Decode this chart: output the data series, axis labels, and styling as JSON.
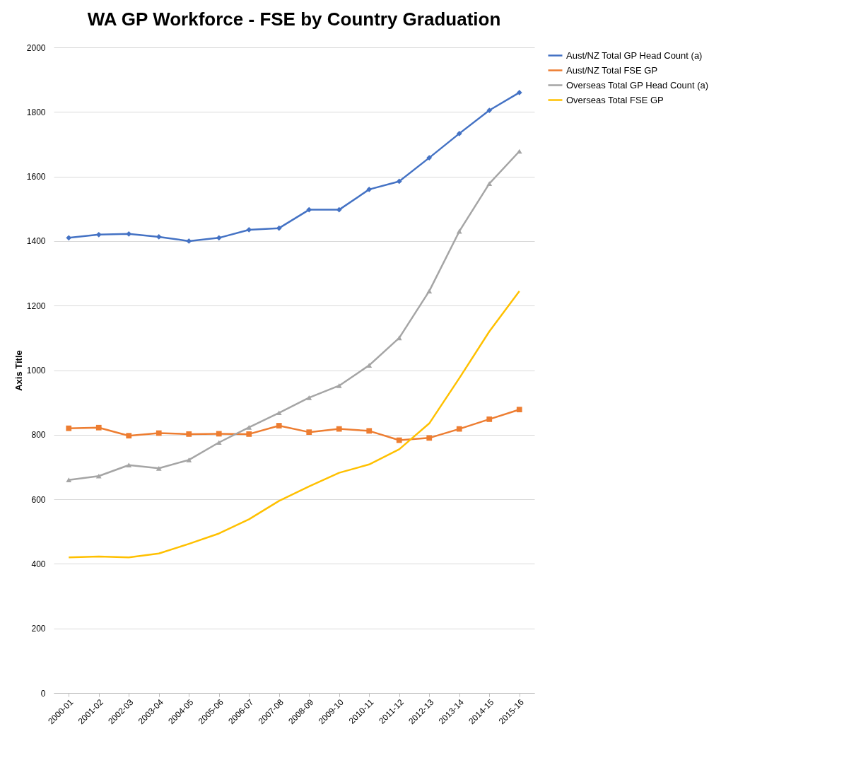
{
  "chart_data": {
    "type": "line",
    "title": "WA GP Workforce - FSE by Country Graduation",
    "ylabel": "Axis Title",
    "categories": [
      "2000-01",
      "2001-02",
      "2002-03",
      "2003-04",
      "2004-05",
      "2005-06",
      "2006-07",
      "2007-08",
      "2008-09",
      "2009-10",
      "2010-11",
      "2011-12",
      "2012-13",
      "2013-14",
      "2014-15",
      "2015-16"
    ],
    "series": [
      {
        "name": "Aust/NZ Total GP Head Count (a)",
        "color": "#4472c4",
        "marker": "diamond",
        "values": [
          1410,
          1420,
          1422,
          1413,
          1400,
          1410,
          1435,
          1440,
          1497,
          1497,
          1560,
          1585,
          1658,
          1733,
          1805,
          1860
        ]
      },
      {
        "name": "Aust/NZ Total FSE GP",
        "color": "#ed7d31",
        "marker": "square",
        "values": [
          820,
          822,
          797,
          805,
          802,
          803,
          802,
          828,
          808,
          818,
          812,
          783,
          790,
          818,
          848,
          878
        ]
      },
      {
        "name": "Overseas Total GP Head Count (a)",
        "color": "#a5a5a5",
        "marker": "triangle",
        "values": [
          660,
          672,
          706,
          696,
          722,
          776,
          823,
          868,
          915,
          952,
          1015,
          1100,
          1245,
          1430,
          1578,
          1678
        ]
      },
      {
        "name": "Overseas Total FSE GP",
        "color": "#ffc000",
        "marker": "none",
        "values": [
          420,
          423,
          420,
          432,
          462,
          494,
          538,
          595,
          640,
          682,
          708,
          755,
          835,
          975,
          1120,
          1245
        ]
      }
    ],
    "ylim": [
      0,
      2000
    ],
    "yticks": [
      0,
      200,
      400,
      600,
      800,
      1000,
      1200,
      1400,
      1600,
      1800,
      2000
    ],
    "grid": "y",
    "legend": "right",
    "line_style": "solid"
  }
}
